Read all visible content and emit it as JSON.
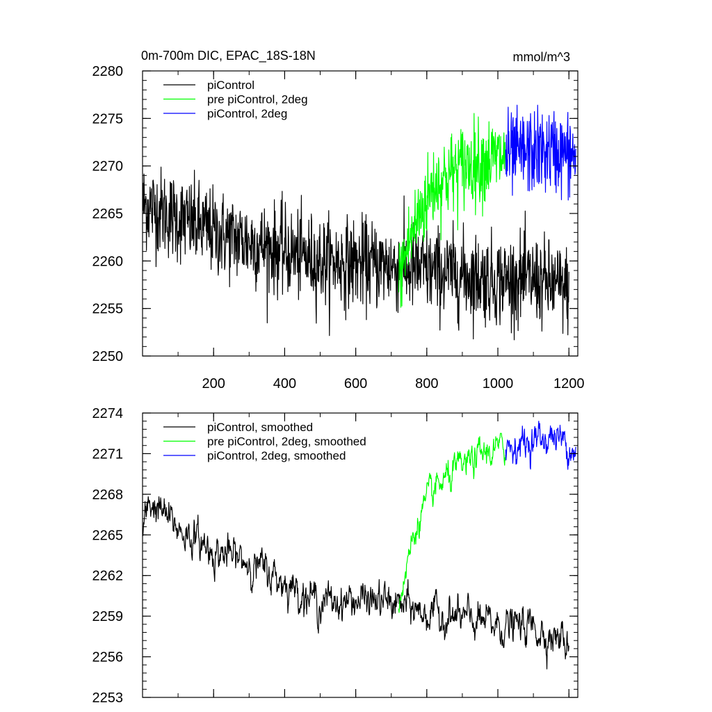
{
  "chart_data": [
    {
      "type": "line",
      "title": "0m-700m DIC, EPAC_18S-18N",
      "units": "mmol/m^3",
      "xlim": [
        0,
        1225
      ],
      "ylim": [
        2250,
        2280
      ],
      "x_ticks": [
        200,
        400,
        600,
        800,
        1000,
        1200
      ],
      "y_ticks": [
        2250,
        2255,
        2260,
        2265,
        2270,
        2275,
        2280
      ],
      "legend_position": "top-left",
      "grid": false,
      "series": [
        {
          "name": "piControl",
          "color": "#000000",
          "x_range": [
            1,
            1200
          ],
          "anchors": [
            [
              1,
              2266
            ],
            [
              100,
              2264.5
            ],
            [
              200,
              2263
            ],
            [
              300,
              2262
            ],
            [
              400,
              2261
            ],
            [
              500,
              2260
            ],
            [
              600,
              2259.8
            ],
            [
              700,
              2259.5
            ],
            [
              800,
              2259
            ],
            [
              900,
              2258.5
            ],
            [
              1000,
              2258
            ],
            [
              1100,
              2258
            ],
            [
              1200,
              2257
            ]
          ],
          "noise_sd": 2.3,
          "min": 2251.7,
          "max": 2272.5
        },
        {
          "name": "pre piControl, 2deg",
          "color": "#00ff00",
          "x_range": [
            721,
            1022
          ],
          "anchors": [
            [
              721,
              2258
            ],
            [
              750,
              2262
            ],
            [
              780,
              2265
            ],
            [
              820,
              2268
            ],
            [
              860,
              2269
            ],
            [
              900,
              2270
            ],
            [
              960,
              2270.5
            ],
            [
              1022,
              2271
            ]
          ],
          "noise_sd": 2.2,
          "min": 2252.4,
          "max": 2277
        },
        {
          "name": "piControl, 2deg",
          "color": "#0000ff",
          "x_range": [
            1022,
            1220
          ],
          "anchors": [
            [
              1022,
              2271
            ],
            [
              1100,
              2271.5
            ],
            [
              1160,
              2271.5
            ],
            [
              1220,
              2271
            ]
          ],
          "noise_sd": 2.2,
          "min": 2262.3,
          "max": 2279
        }
      ]
    },
    {
      "type": "line",
      "xlim": [
        0,
        1225
      ],
      "ylim": [
        2253,
        2274
      ],
      "x_ticks": [
        200,
        400,
        600,
        800,
        1000,
        1200
      ],
      "y_ticks": [
        2253,
        2256,
        2259,
        2262,
        2265,
        2268,
        2271,
        2274
      ],
      "legend_position": "top-left",
      "grid": false,
      "series": [
        {
          "name": "piControl, smoothed",
          "color": "#000000",
          "x_range": [
            1,
            1200
          ],
          "anchors": [
            [
              1,
              2265
            ],
            [
              20,
              2267.5
            ],
            [
              80,
              2266
            ],
            [
              100,
              2265.5
            ],
            [
              200,
              2263.8
            ],
            [
              300,
              2263
            ],
            [
              400,
              2261.5
            ],
            [
              500,
              2260
            ],
            [
              600,
              2260.2
            ],
            [
              700,
              2260
            ],
            [
              800,
              2259.2
            ],
            [
              900,
              2258.8
            ],
            [
              1000,
              2258.3
            ],
            [
              1100,
              2258.2
            ],
            [
              1200,
              2257
            ]
          ],
          "noise_sd": 0.7,
          "min": 2255.1,
          "max": 2268.3
        },
        {
          "name": "pre piControl, 2deg, smoothed",
          "color": "#00ff00",
          "x_range": [
            721,
            1022
          ],
          "anchors": [
            [
              721,
              2260
            ],
            [
              750,
              2263.5
            ],
            [
              780,
              2266.5
            ],
            [
              820,
              2268.2
            ],
            [
              860,
              2269.2
            ],
            [
              900,
              2270
            ],
            [
              960,
              2271
            ],
            [
              1022,
              2271.5
            ]
          ],
          "noise_sd": 0.6,
          "min": 2259.1,
          "max": 2272.5
        },
        {
          "name": "piControl, 2deg, smoothed",
          "color": "#0000ff",
          "x_range": [
            1022,
            1220
          ],
          "anchors": [
            [
              1022,
              2271.5
            ],
            [
              1100,
              2272
            ],
            [
              1160,
              2272.3
            ],
            [
              1220,
              2271.4
            ]
          ],
          "noise_sd": 0.65,
          "min": 2269.5,
          "max": 2273.4
        }
      ]
    }
  ]
}
